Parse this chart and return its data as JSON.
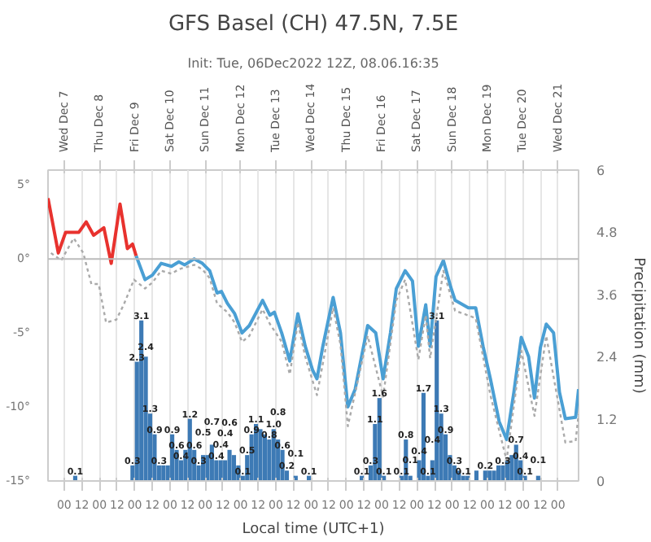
{
  "chart_data": {
    "type": "line",
    "title": "GFS Basel (CH) 47.5N, 7.5E",
    "subtitle": "Init: Tue, 06Dec2022 12Z, 08.06.16:35",
    "xlabel": "Local time (UTC+1)",
    "y2label": "Precipitation (mm)",
    "xlim": [
      "2022-12-06T13:00",
      "2022-12-21T14:00"
    ],
    "xticks": [
      {
        "value": "2022-12-07T00:00",
        "label": "00"
      },
      {
        "value": "2022-12-07T12:00",
        "label": "12"
      },
      {
        "value": "2022-12-08T00:00",
        "label": "00"
      },
      {
        "value": "2022-12-08T12:00",
        "label": "12"
      },
      {
        "value": "2022-12-09T00:00",
        "label": "00"
      },
      {
        "value": "2022-12-09T12:00",
        "label": "12"
      },
      {
        "value": "2022-12-10T00:00",
        "label": "00"
      },
      {
        "value": "2022-12-10T12:00",
        "label": "12"
      },
      {
        "value": "2022-12-11T00:00",
        "label": "00"
      },
      {
        "value": "2022-12-11T12:00",
        "label": "12"
      },
      {
        "value": "2022-12-12T00:00",
        "label": "00"
      },
      {
        "value": "2022-12-12T12:00",
        "label": "12"
      },
      {
        "value": "2022-12-13T00:00",
        "label": "00"
      },
      {
        "value": "2022-12-13T12:00",
        "label": "12"
      },
      {
        "value": "2022-12-14T00:00",
        "label": "00"
      },
      {
        "value": "2022-12-14T12:00",
        "label": "12"
      },
      {
        "value": "2022-12-15T00:00",
        "label": "00"
      },
      {
        "value": "2022-12-15T12:00",
        "label": "12"
      },
      {
        "value": "2022-12-16T00:00",
        "label": "00"
      },
      {
        "value": "2022-12-16T12:00",
        "label": "12"
      },
      {
        "value": "2022-12-17T00:00",
        "label": "00"
      },
      {
        "value": "2022-12-17T12:00",
        "label": "12"
      },
      {
        "value": "2022-12-18T00:00",
        "label": "00"
      },
      {
        "value": "2022-12-18T12:00",
        "label": "12"
      },
      {
        "value": "2022-12-19T00:00",
        "label": "00"
      },
      {
        "value": "2022-12-19T12:00",
        "label": "12"
      },
      {
        "value": "2022-12-20T00:00",
        "label": "00"
      },
      {
        "value": "2022-12-20T12:00",
        "label": "12"
      },
      {
        "value": "2022-12-21T00:00",
        "label": "00"
      }
    ],
    "x2lim": [
      "2022-12-06T13:00",
      "2022-12-21T14:00"
    ],
    "x2ticks": [
      {
        "value": "2022-12-07",
        "label": "Wed Dec 7"
      },
      {
        "value": "2022-12-08",
        "label": "Thu Dec 8"
      },
      {
        "value": "2022-12-09",
        "label": "Fri Dec 9"
      },
      {
        "value": "2022-12-10",
        "label": "Sat Dec 10"
      },
      {
        "value": "2022-12-11",
        "label": "Sun Dec 11"
      },
      {
        "value": "2022-12-12",
        "label": "Mon Dec 12"
      },
      {
        "value": "2022-12-13",
        "label": "Tue Dec 13"
      },
      {
        "value": "2022-12-14",
        "label": "Wed Dec 14"
      },
      {
        "value": "2022-12-15",
        "label": "Thu Dec 15"
      },
      {
        "value": "2022-12-16",
        "label": "Fri Dec 16"
      },
      {
        "value": "2022-12-17",
        "label": "Sat Dec 17"
      },
      {
        "value": "2022-12-18",
        "label": "Sun Dec 18"
      },
      {
        "value": "2022-12-19",
        "label": "Mon Dec 19"
      },
      {
        "value": "2022-12-20",
        "label": "Tue Dec 20"
      },
      {
        "value": "2022-12-21",
        "label": "Wed Dec 21"
      }
    ],
    "ylim": [
      -15,
      6
    ],
    "yticks": [
      {
        "value": -15,
        "label": "-15°"
      },
      {
        "value": -10,
        "label": "-10°"
      },
      {
        "value": -5,
        "label": "-5°"
      },
      {
        "value": 0,
        "label": "0°"
      },
      {
        "value": 5,
        "label": "5°"
      }
    ],
    "y2lim": [
      0,
      6
    ],
    "y2ticks": [
      0,
      1.2,
      2.4,
      3.6,
      4.8,
      6
    ],
    "grid": "x",
    "ref_lines": [
      {
        "axis": "y",
        "value": 0,
        "color": "#bbbbbb"
      }
    ],
    "series": [
      {
        "color": "#e8322e",
        "line_style": "solid",
        "x": [
          "2022-12-06T13:00",
          "2022-12-06T20:00",
          "2022-12-07T01:00",
          "2022-12-07T10:00",
          "2022-12-07T15:00",
          "2022-12-07T20:00",
          "2022-12-08T03:00",
          "2022-12-08T08:00",
          "2022-12-08T14:00",
          "2022-12-08T19:00",
          "2022-12-08T22:30",
          "2022-12-09T01:00"
        ],
        "values": [
          4.1,
          0.4,
          1.8,
          1.8,
          2.5,
          1.6,
          2.1,
          -0.3,
          3.7,
          0.7,
          1.0,
          0.2
        ]
      },
      {
        "color": "#4a9fd4",
        "line_style": "solid",
        "x": [
          "2022-12-09T01:00",
          "2022-12-09T07:00",
          "2022-12-09T12:00",
          "2022-12-09T18:00",
          "2022-12-10T01:00",
          "2022-12-10T06:00",
          "2022-12-10T10:00",
          "2022-12-10T16:30",
          "2022-12-10T22:00",
          "2022-12-11T03:00",
          "2022-12-11T08:00",
          "2022-12-11T11:00",
          "2022-12-11T15:00",
          "2022-12-11T20:00",
          "2022-12-12T01:00",
          "2022-12-12T06:00",
          "2022-12-12T15:00",
          "2022-12-12T20:00",
          "2022-12-12T23:00",
          "2022-12-13T04:00",
          "2022-12-13T09:30",
          "2022-12-13T15:00",
          "2022-12-13T20:00",
          "2022-12-14T01:00",
          "2022-12-14T04:00",
          "2022-12-14T08:00",
          "2022-12-14T15:00",
          "2022-12-14T20:00",
          "2022-12-15T01:00",
          "2022-12-15T06:00",
          "2022-12-15T14:30",
          "2022-12-15T20:00",
          "2022-12-16T01:00",
          "2022-12-16T06:00",
          "2022-12-16T10:00",
          "2022-12-16T16:00",
          "2022-12-16T21:00",
          "2022-12-17T01:00",
          "2022-12-17T06:00",
          "2022-12-17T09:00",
          "2022-12-17T13:00",
          "2022-12-17T18:00",
          "2022-12-17T23:00",
          "2022-12-18T02:00",
          "2022-12-18T11:00",
          "2022-12-18T16:00",
          "2022-12-18T21:00",
          "2022-12-19T02:00",
          "2022-12-19T08:00",
          "2022-12-19T13:00",
          "2022-12-19T18:00",
          "2022-12-19T23:00",
          "2022-12-20T04:00",
          "2022-12-20T08:00",
          "2022-12-20T12:00",
          "2022-12-20T16:00",
          "2022-12-20T21:00",
          "2022-12-21T01:00",
          "2022-12-21T05:00",
          "2022-12-21T12:00",
          "2022-12-21T14:00"
        ],
        "values": [
          0.2,
          -1.4,
          -1.1,
          -0.3,
          -0.5,
          -0.2,
          -0.4,
          0.0,
          -0.3,
          -0.8,
          -2.3,
          -2.2,
          -3.0,
          -3.7,
          -5.0,
          -4.5,
          -2.8,
          -3.8,
          -3.6,
          -5.0,
          -6.9,
          -3.7,
          -5.9,
          -7.5,
          -8.1,
          -5.9,
          -2.6,
          -5.0,
          -10.0,
          -8.8,
          -4.5,
          -5.0,
          -8.1,
          -5.0,
          -2.0,
          -0.8,
          -1.5,
          -5.9,
          -3.1,
          -5.9,
          -1.2,
          -0.1,
          -1.9,
          -2.8,
          -3.3,
          -3.3,
          -5.9,
          -8.1,
          -11.0,
          -12.2,
          -9.0,
          -5.3,
          -6.6,
          -9.4,
          -6.0,
          -4.4,
          -5.0,
          -9.0,
          -10.8,
          -10.7,
          -8.8
        ]
      },
      {
        "color": "#aaaaaa",
        "line_style": "dotted",
        "x": [
          "2022-12-06T15:00",
          "2022-12-06T22:00",
          "2022-12-07T06:30",
          "2022-12-07T13:00",
          "2022-12-07T18:30",
          "2022-12-07T23:30",
          "2022-12-08T04:30",
          "2022-12-08T11:30",
          "2022-12-08T16:30",
          "2022-12-08T23:30",
          "2022-12-09T07:00",
          "2022-12-09T12:00",
          "2022-12-09T18:00",
          "2022-12-10T01:00",
          "2022-12-10T06:00",
          "2022-12-10T16:30",
          "2022-12-10T22:00",
          "2022-12-11T03:00",
          "2022-12-11T08:00",
          "2022-12-11T15:00",
          "2022-12-11T20:00",
          "2022-12-12T01:00",
          "2022-12-12T06:00",
          "2022-12-12T15:00",
          "2022-12-12T20:00",
          "2022-12-13T04:00",
          "2022-12-13T09:30",
          "2022-12-13T15:00",
          "2022-12-13T20:00",
          "2022-12-14T04:00",
          "2022-12-14T15:00",
          "2022-12-14T20:00",
          "2022-12-15T01:00",
          "2022-12-15T14:30",
          "2022-12-16T01:00",
          "2022-12-16T10:00",
          "2022-12-16T16:00",
          "2022-12-17T01:00",
          "2022-12-17T06:00",
          "2022-12-17T09:00",
          "2022-12-17T18:00",
          "2022-12-18T02:00",
          "2022-12-18T16:00",
          "2022-12-19T02:00",
          "2022-12-19T13:00",
          "2022-12-19T23:00",
          "2022-12-20T08:00",
          "2022-12-20T16:00",
          "2022-12-21T05:00",
          "2022-12-21T12:00",
          "2022-12-21T14:00"
        ],
        "values": [
          0.4,
          -0.1,
          1.4,
          0.4,
          -1.7,
          -1.7,
          -4.3,
          -4.1,
          -3.1,
          -1.4,
          -2.0,
          -1.6,
          -0.8,
          -1.0,
          -0.7,
          -0.4,
          -0.7,
          -1.3,
          -3.0,
          -3.6,
          -4.3,
          -5.6,
          -5.2,
          -3.4,
          -4.4,
          -5.6,
          -7.8,
          -4.3,
          -6.6,
          -9.2,
          -3.3,
          -5.8,
          -11.3,
          -5.2,
          -9.3,
          -2.8,
          -1.4,
          -6.8,
          -3.8,
          -6.7,
          -0.8,
          -3.5,
          -4.0,
          -9.2,
          -13.6,
          -6.2,
          -10.6,
          -5.2,
          -12.4,
          -12.3,
          -10.5
        ]
      },
      {
        "type": "bar",
        "axis": "y2",
        "color": "#3d7ab5",
        "x": [
          "2022-12-07T07:30",
          "2022-12-08T22:30",
          "2022-12-09T01:30",
          "2022-12-09T04:30",
          "2022-12-09T07:30",
          "2022-12-09T10:30",
          "2022-12-09T13:30",
          "2022-12-09T16:30",
          "2022-12-09T19:30",
          "2022-12-09T22:30",
          "2022-12-10T01:30",
          "2022-12-10T04:30",
          "2022-12-10T07:30",
          "2022-12-10T10:30",
          "2022-12-10T13:30",
          "2022-12-10T16:30",
          "2022-12-10T19:30",
          "2022-12-10T22:30",
          "2022-12-11T01:30",
          "2022-12-11T04:30",
          "2022-12-11T07:30",
          "2022-12-11T10:30",
          "2022-12-11T13:30",
          "2022-12-11T16:30",
          "2022-12-11T19:30",
          "2022-12-11T22:30",
          "2022-12-12T01:30",
          "2022-12-12T04:30",
          "2022-12-12T07:30",
          "2022-12-12T10:30",
          "2022-12-12T13:30",
          "2022-12-12T16:30",
          "2022-12-12T19:30",
          "2022-12-12T22:30",
          "2022-12-13T01:30",
          "2022-12-13T04:30",
          "2022-12-13T07:30",
          "2022-12-13T13:30",
          "2022-12-13T22:30",
          "2022-12-15T10:30",
          "2022-12-15T16:30",
          "2022-12-15T19:30",
          "2022-12-15T22:30",
          "2022-12-16T01:30",
          "2022-12-16T13:30",
          "2022-12-16T16:30",
          "2022-12-16T19:30",
          "2022-12-17T01:30",
          "2022-12-17T04:30",
          "2022-12-17T07:30",
          "2022-12-17T10:30",
          "2022-12-17T13:30",
          "2022-12-17T16:30",
          "2022-12-17T19:30",
          "2022-12-17T22:30",
          "2022-12-18T01:30",
          "2022-12-18T04:30",
          "2022-12-18T07:30",
          "2022-12-18T10:30",
          "2022-12-18T16:30",
          "2022-12-18T22:30",
          "2022-12-19T01:30",
          "2022-12-19T04:30",
          "2022-12-19T07:30",
          "2022-12-19T10:30",
          "2022-12-19T13:30",
          "2022-12-19T16:30",
          "2022-12-19T19:30",
          "2022-12-19T22:30",
          "2022-12-20T01:30",
          "2022-12-20T10:30"
        ],
        "values": [
          0.1,
          0.3,
          2.3,
          3.1,
          2.4,
          1.3,
          0.9,
          0.3,
          0.3,
          0.3,
          0.9,
          0.6,
          0.4,
          0.6,
          1.2,
          0.6,
          0.3,
          0.5,
          0.5,
          0.7,
          0.4,
          0.4,
          0.4,
          0.6,
          0.5,
          0.3,
          0.1,
          0.5,
          0.9,
          1.1,
          1.0,
          0.9,
          0.8,
          1.0,
          0.8,
          0.6,
          0.2,
          0.1,
          0.1,
          0.1,
          0.3,
          1.1,
          1.6,
          0.1,
          0.1,
          0.8,
          0.1,
          0.4,
          1.7,
          0.1,
          0.4,
          3.1,
          1.3,
          0.9,
          0.5,
          0.3,
          0.2,
          0.1,
          0.1,
          0.2,
          0.2,
          0.2,
          0.2,
          0.3,
          0.3,
          0.4,
          0.5,
          0.7,
          0.4,
          0.1,
          0.1
        ],
        "value_labels": [
          "0.1",
          "0.3",
          "2.3",
          "3.1",
          "2.4",
          "1.3",
          "0.9",
          "0.3",
          null,
          null,
          "0.9",
          "0.6",
          "0.4",
          null,
          "1.2",
          "0.6",
          "0.3",
          "0.5",
          null,
          "0.7",
          "0.4",
          "0.4",
          "0.4",
          "0.6",
          null,
          null,
          "0.1",
          "0.5",
          "0.9",
          "1.1",
          null,
          null,
          "0.8",
          "1.0",
          "0.8",
          "0.6",
          "0.2",
          "0.1",
          "0.1",
          "0.1",
          "0.3",
          "1.1",
          "1.6",
          "0.1",
          "0.1",
          "0.8",
          "0.1",
          "0.4",
          "1.7",
          "0.1",
          "0.4",
          "3.1",
          "1.3",
          "0.9",
          null,
          "0.3",
          null,
          "0.1",
          null,
          null,
          "0.2",
          null,
          null,
          null,
          "0.3",
          null,
          null,
          "0.7",
          "0.4",
          "0.1",
          "0.1"
        ]
      }
    ]
  }
}
